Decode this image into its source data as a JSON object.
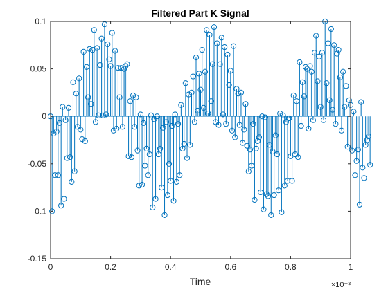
{
  "chart_data": {
    "type": "stem",
    "title": "Filtered Part K Signal",
    "xlabel": "Time",
    "ylabel": "",
    "x_exponent_label": "×10⁻³",
    "xlim": [
      0,
      0.001
    ],
    "ylim": [
      -0.15,
      0.1
    ],
    "x_ticks": [
      0,
      0.0002,
      0.0004,
      0.0006,
      0.0008,
      0.001
    ],
    "x_tick_labels": [
      "0",
      "0.2",
      "0.4",
      "0.6",
      "0.8",
      "1"
    ],
    "y_ticks": [
      -0.15,
      -0.1,
      -0.05,
      0,
      0.05,
      0.1
    ],
    "y_tick_labels": [
      "-0.15",
      "-0.1",
      "-0.05",
      "0",
      "0.05",
      "0.1"
    ],
    "grid": false,
    "legend": "none",
    "color": "#0072BD",
    "series": [
      {
        "x_start": 0,
        "x_step": 5e-06,
        "values": [
          0.0,
          -0.1,
          -0.018,
          -0.062,
          -0.016,
          -0.062,
          -0.007,
          -0.094,
          0.01,
          -0.087,
          -0.004,
          -0.044,
          0.009,
          -0.043,
          -0.069,
          0.036,
          -0.058,
          0.024,
          -0.011,
          0.04,
          -0.014,
          -0.024,
          0.068,
          -0.026,
          0.052,
          0.02,
          0.071,
          0.013,
          0.07,
          0.091,
          -0.006,
          0.072,
          0.001,
          0.054,
          0.082,
          0.001,
          0.097,
          0.002,
          0.076,
          0.06,
          0.053,
          0.088,
          -0.015,
          0.069,
          -0.013,
          0.051,
          0.02,
          0.051,
          -0.011,
          0.05,
          0.053,
          0.055,
          -0.042,
          0.016,
          -0.043,
          0.022,
          -0.011,
          0.02,
          -0.036,
          -0.073,
          0.002,
          -0.072,
          -0.007,
          -0.052,
          -0.034,
          -0.062,
          -0.04,
          0.001,
          -0.096,
          -0.003,
          -0.087,
          0.0,
          -0.04,
          -0.034,
          -0.075,
          -0.012,
          -0.104,
          -0.006,
          -0.083,
          -0.05,
          -0.068,
          -0.01,
          -0.089,
          0.002,
          -0.069,
          -0.008,
          -0.062,
          0.012,
          -0.034,
          -0.029,
          0.035,
          -0.044,
          0.023,
          -0.03,
          0.025,
          0.042,
          -0.006,
          0.062,
          0.006,
          0.045,
          0.028,
          0.07,
          0.009,
          0.047,
          0.091,
          0.003,
          0.086,
          0.016,
          0.055,
          0.094,
          -0.006,
          0.077,
          -0.009,
          0.055,
          0.083,
          0.002,
          0.073,
          -0.008,
          0.065,
          0.033,
          0.048,
          -0.015,
          0.074,
          -0.022,
          0.029,
          0.024,
          -0.009,
          0.025,
          -0.028,
          -0.014,
          0.013,
          -0.031,
          -0.058,
          -0.035,
          -0.052,
          -0.008,
          -0.088,
          -0.034,
          -0.026,
          -0.022,
          -0.08,
          0.0,
          -0.098,
          -0.001,
          -0.082,
          -0.084,
          -0.03,
          -0.104,
          -0.037,
          -0.083,
          -0.02,
          -0.04,
          -0.078,
          0.003,
          -0.101,
          0.001,
          -0.073,
          -0.006,
          -0.068,
          -0.002,
          -0.042,
          -0.068,
          0.022,
          -0.04,
          0.016,
          -0.043,
          0.057,
          -0.01,
          0.036,
          0.021,
          0.052,
          0.05,
          -0.013,
          0.053,
          0.047,
          -0.004,
          0.067,
          0.085,
          0.037,
          0.063,
          0.01,
          0.067,
          -0.004,
          0.1,
          0.035,
          0.077,
          0.017,
          0.092,
          0.007,
          0.075,
          -0.008,
          0.066,
          0.07,
          0.041,
          -0.015,
          0.047,
          0.01,
          0.032,
          -0.032,
          0.017,
          0.012,
          -0.036,
          0.005,
          -0.062,
          -0.047,
          -0.035,
          -0.093,
          0.015,
          -0.054,
          -0.065,
          -0.03,
          -0.025,
          -0.021,
          -0.051
        ]
      }
    ]
  }
}
